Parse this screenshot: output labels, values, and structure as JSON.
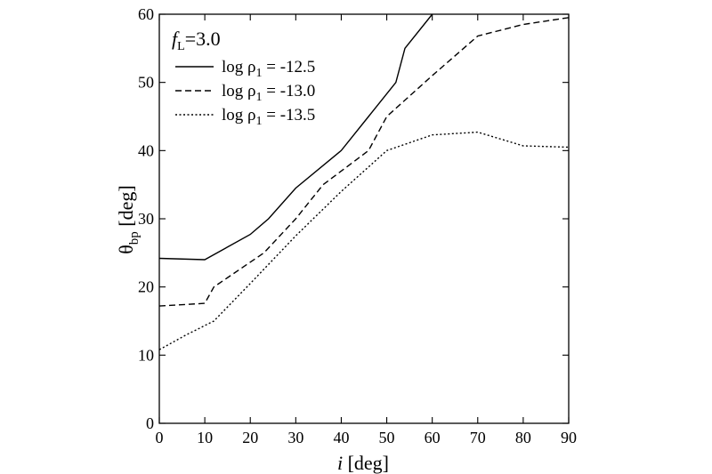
{
  "chart_data": {
    "type": "line",
    "title": "",
    "annotation": {
      "symbol": "f",
      "subscript": "L",
      "value": "=3.0"
    },
    "xlabel": {
      "symbol": "i",
      "unit": "[deg]"
    },
    "ylabel": {
      "symbol": "θ",
      "subscript": "bp",
      "unit": "[deg]"
    },
    "xlim": [
      0,
      90
    ],
    "ylim": [
      0,
      60
    ],
    "xticks": [
      0,
      10,
      20,
      30,
      40,
      50,
      60,
      70,
      80,
      90
    ],
    "yticks": [
      0,
      10,
      20,
      30,
      40,
      50,
      60
    ],
    "grid": false,
    "legend_position": "top-left",
    "series": [
      {
        "name": "log  ρ1 = -12.5",
        "name_parts": {
          "prefix": "log  ρ",
          "sub": "1",
          "suffix": " = -12.5"
        },
        "style": "solid",
        "x": [
          0,
          10,
          20,
          24,
          30,
          40,
          46,
          52,
          54,
          60
        ],
        "y": [
          24.2,
          24.0,
          27.7,
          30,
          34.5,
          40,
          45,
          50,
          55,
          60
        ]
      },
      {
        "name": "log  ρ1 = -13.0",
        "name_parts": {
          "prefix": "log  ρ",
          "sub": "1",
          "suffix": " = -13.0"
        },
        "style": "dashed",
        "x": [
          0,
          10,
          12,
          23,
          30,
          36,
          46,
          50,
          60,
          70,
          80,
          90
        ],
        "y": [
          17.2,
          17.6,
          20,
          25,
          30,
          35,
          40,
          45,
          51,
          56.8,
          58.5,
          59.5
        ]
      },
      {
        "name": "log  ρ1 = -13.5",
        "name_parts": {
          "prefix": "log  ρ",
          "sub": "1",
          "suffix": " = -13.5"
        },
        "style": "dotted",
        "x": [
          0,
          6,
          12,
          20,
          30,
          40,
          50,
          60,
          70,
          80,
          90
        ],
        "y": [
          10.8,
          13,
          15,
          20.5,
          27.5,
          34,
          40,
          42.3,
          42.7,
          40.7,
          40.5
        ]
      }
    ]
  }
}
